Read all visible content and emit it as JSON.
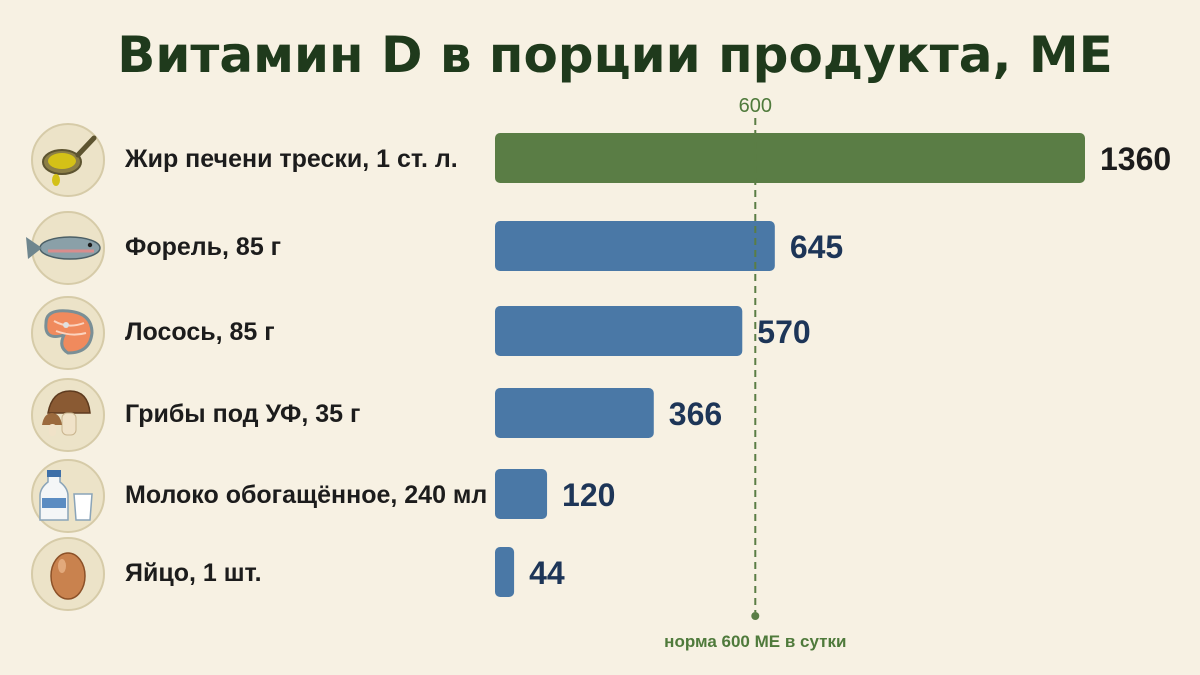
{
  "chart_data": {
    "type": "bar",
    "orientation": "horizontal",
    "title": "Витамин D в порции продукта, МЕ",
    "categories": [
      "Жир печени трески, 1 ст. л.",
      "Форель, 85 г",
      "Лосось, 85 г",
      "Грибы под УФ, 35 г",
      "Молоко обогащённое, 240 мл",
      "Яйцо, 1 шт."
    ],
    "values": [
      1360,
      645,
      570,
      366,
      120,
      44
    ],
    "value_labels": [
      "1360",
      "645",
      "570",
      "366",
      "120",
      "44"
    ],
    "icons": [
      "spoon-oil-icon",
      "trout-icon",
      "salmon-steak-icon",
      "mushroom-icon",
      "milk-icon",
      "egg-icon"
    ],
    "xlim": [
      0,
      1360
    ],
    "grid": false,
    "reference_line": {
      "value": 600,
      "label": "600",
      "note": "норма 600 МЕ в сутки",
      "color": "#5a7d45"
    },
    "colors": {
      "highlight": "#5a7d45",
      "default": "#4a78a6",
      "background": "#f7f1e3",
      "title": "#1f3a1c",
      "value_text": "#1d3557"
    }
  }
}
